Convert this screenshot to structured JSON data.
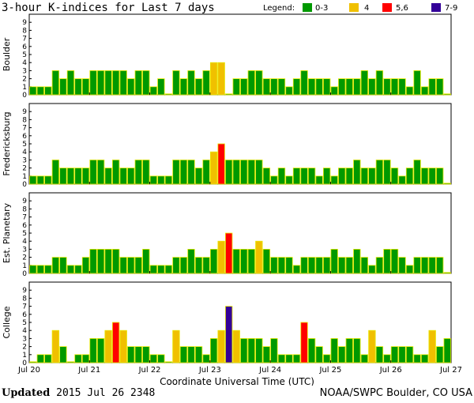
{
  "title": "3-hour K-indices for Last 7 days",
  "legend": {
    "label": "Legend:",
    "items": [
      {
        "label": "0-3",
        "color": "#009900"
      },
      {
        "label": "4",
        "color": "#f0c000"
      },
      {
        "label": "5,6",
        "color": "#ff0000"
      },
      {
        "label": "7-9",
        "color": "#330099"
      }
    ]
  },
  "x_axis_title": "Coordinate Universal Time (UTC)",
  "footer": {
    "updated_label": "Updated",
    "updated_value": "2015 Jul 26 2348",
    "credit": "NOAA/SWPC Boulder, CO USA"
  },
  "chart_data": {
    "type": "bar",
    "x_tick_labels": [
      "Jul 20",
      "Jul 21",
      "Jul 22",
      "Jul 23",
      "Jul 24",
      "Jul 25",
      "Jul 26",
      "Jul 27"
    ],
    "y_ticks": [
      0,
      1,
      2,
      3,
      4,
      5,
      6,
      7,
      8,
      9
    ],
    "ylim": [
      0,
      9
    ],
    "bars_per_panel": 56,
    "color_scale": {
      "0-3": "#009900",
      "4": "#f0c000",
      "5-6": "#ff0000",
      "7-9": "#330099"
    },
    "series": [
      {
        "name": "Boulder",
        "values": [
          1,
          1,
          1,
          3,
          2,
          3,
          2,
          2,
          3,
          3,
          3,
          3,
          3,
          2,
          3,
          3,
          1,
          2,
          0,
          3,
          2,
          3,
          2,
          3,
          4,
          4,
          0,
          2,
          2,
          3,
          3,
          2,
          2,
          2,
          1,
          2,
          3,
          2,
          2,
          2,
          1,
          2,
          2,
          2,
          3,
          2,
          3,
          2,
          2,
          2,
          1,
          3,
          1,
          2,
          2,
          0
        ]
      },
      {
        "name": "Fredericksburg",
        "values": [
          1,
          1,
          1,
          3,
          2,
          2,
          2,
          2,
          3,
          3,
          2,
          3,
          2,
          2,
          3,
          3,
          1,
          1,
          1,
          3,
          3,
          3,
          2,
          3,
          4,
          5,
          3,
          3,
          3,
          3,
          3,
          2,
          1,
          2,
          1,
          2,
          2,
          2,
          1,
          2,
          1,
          2,
          2,
          3,
          2,
          2,
          3,
          3,
          2,
          1,
          2,
          3,
          2,
          2,
          2,
          0
        ]
      },
      {
        "name": "Est. Planetary",
        "values": [
          1,
          1,
          1,
          2,
          2,
          1,
          1,
          2,
          3,
          3,
          3,
          3,
          2,
          2,
          2,
          3,
          1,
          1,
          1,
          2,
          2,
          3,
          2,
          2,
          3,
          4,
          5,
          3,
          3,
          3,
          4,
          3,
          2,
          2,
          2,
          1,
          2,
          2,
          2,
          2,
          3,
          2,
          2,
          3,
          2,
          1,
          2,
          3,
          3,
          2,
          1,
          2,
          2,
          2,
          2,
          0
        ]
      },
      {
        "name": "College",
        "values": [
          0,
          1,
          1,
          4,
          2,
          0,
          1,
          1,
          3,
          3,
          4,
          5,
          4,
          2,
          2,
          2,
          1,
          1,
          0,
          4,
          2,
          2,
          2,
          1,
          3,
          4,
          7,
          4,
          3,
          3,
          3,
          2,
          3,
          1,
          1,
          1,
          5,
          3,
          2,
          1,
          3,
          2,
          3,
          3,
          1,
          4,
          2,
          1,
          2,
          2,
          2,
          1,
          1,
          4,
          2,
          3
        ]
      }
    ]
  }
}
